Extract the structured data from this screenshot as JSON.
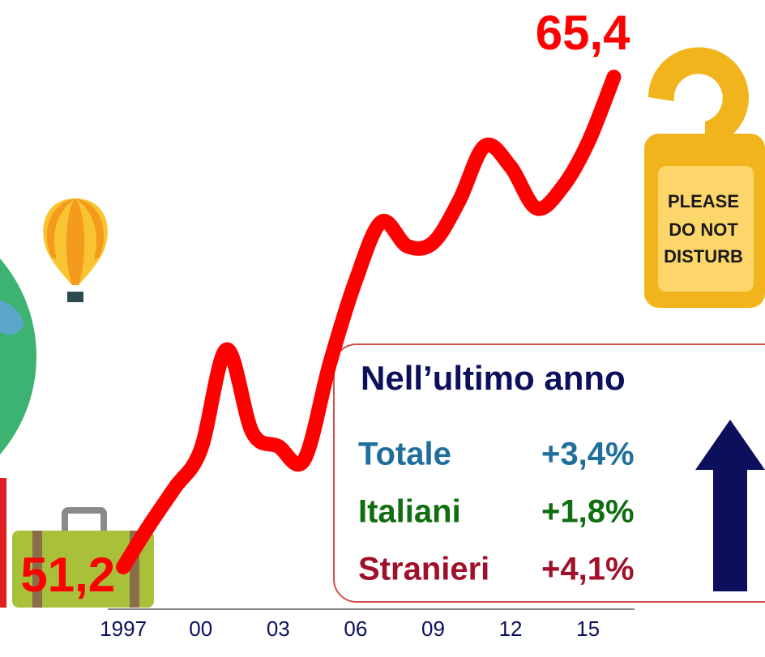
{
  "chart_data": {
    "type": "line",
    "x": [
      1997,
      1998,
      1999,
      2000,
      2001,
      2002,
      2003,
      2004,
      2005,
      2006,
      2007,
      2008,
      2009,
      2010,
      2011,
      2012,
      2013,
      2014,
      2015,
      2016
    ],
    "series": [
      {
        "color": "#ff0000",
        "values": [
          51.2,
          52.4,
          53.5,
          54.6,
          57.5,
          55.1,
          54.7,
          54.3,
          57.1,
          59.5,
          61.2,
          60.5,
          60.6,
          61.8,
          63.4,
          62.8,
          61.6,
          62.2,
          63.5,
          65.4
        ],
        "value_labels": [
          "51,2",
          null,
          null,
          null,
          null,
          null,
          null,
          null,
          null,
          null,
          null,
          null,
          null,
          null,
          null,
          null,
          null,
          null,
          null,
          "65,4"
        ]
      }
    ],
    "xlim": [
      1996.4,
      2016.8
    ],
    "xticks": [
      1997,
      {
        "value": 2000,
        "label": "00"
      },
      {
        "value": 2003,
        "label": "03"
      },
      {
        "value": 2006,
        "label": "06"
      },
      {
        "value": 2009,
        "label": "09"
      },
      {
        "value": 2012,
        "label": "12"
      },
      {
        "value": 2015,
        "label": "15"
      }
    ],
    "ylim": [
      49.8,
      65.8
    ],
    "box": {
      "title": "Nell’ultimo anno",
      "rows": [
        {
          "label": "Totale",
          "change": "+3,4%",
          "color": "#1f6e9c"
        },
        {
          "label": "Italiani",
          "change": "+1,8%",
          "color": "#0f6e0f"
        },
        {
          "label": "Stranieri",
          "change": "+4,1%",
          "color": "#a0102a"
        }
      ]
    },
    "sign": [
      "PLEASE",
      "DO NOT",
      "DISTURB"
    ]
  }
}
